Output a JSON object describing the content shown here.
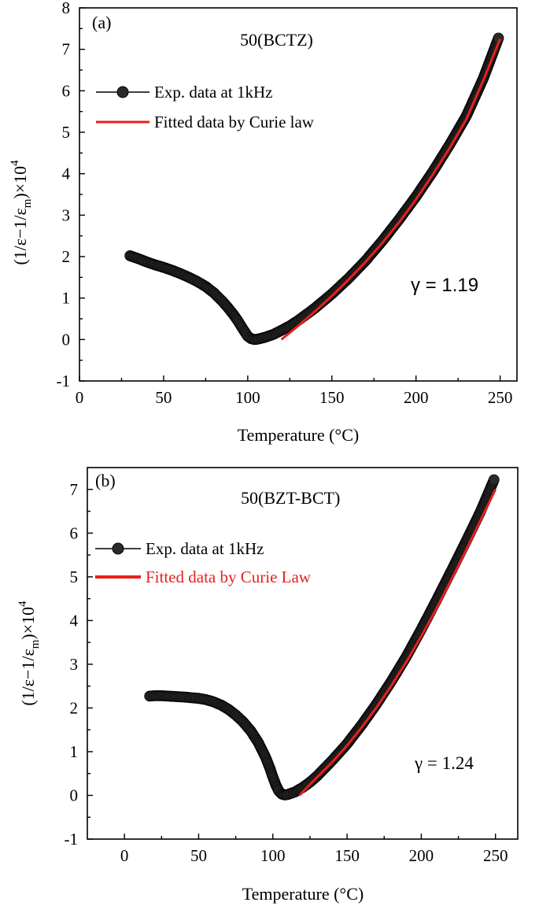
{
  "chart_data": [
    {
      "type": "scatter",
      "panel_label": "(a)",
      "title": "50(BCTZ)",
      "xlabel": "Temperature (°C)",
      "ylabel": {
        "main": "(1/ε−1/ε",
        "sub": "m",
        "close": ")×10",
        "sup": "4"
      },
      "xlim": [
        0,
        260
      ],
      "ylim": [
        -1,
        8
      ],
      "xticks": [
        0,
        50,
        100,
        150,
        200,
        250
      ],
      "yticks": [
        -1,
        0,
        1,
        2,
        3,
        4,
        5,
        6,
        7,
        8
      ],
      "grid": false,
      "legend_position": "top-left",
      "annotation": {
        "text": "γ = 1.19",
        "font": "sans"
      },
      "series": [
        {
          "name": "Exp. data at 1kHz",
          "kind": "marker",
          "color": "#2a2a2a",
          "x": [
            30,
            35,
            40,
            45,
            50,
            55,
            60,
            65,
            70,
            75,
            80,
            85,
            88,
            91,
            94,
            96,
            98,
            100,
            102,
            104,
            106,
            110,
            115,
            120,
            125,
            130,
            140,
            150,
            160,
            170,
            180,
            190,
            200,
            210,
            220,
            230,
            240,
            249
          ],
          "y": [
            2.02,
            1.95,
            1.87,
            1.8,
            1.74,
            1.67,
            1.59,
            1.5,
            1.4,
            1.28,
            1.12,
            0.92,
            0.78,
            0.63,
            0.46,
            0.33,
            0.2,
            0.08,
            0.02,
            0.0,
            0.01,
            0.05,
            0.12,
            0.22,
            0.33,
            0.46,
            0.76,
            1.1,
            1.48,
            1.9,
            2.38,
            2.9,
            3.45,
            4.05,
            4.7,
            5.4,
            6.3,
            7.27
          ]
        },
        {
          "name": "Fitted data by Curie law",
          "kind": "line",
          "color": "#e8201c",
          "x": [
            120,
            130,
            140,
            150,
            160,
            170,
            180,
            190,
            200,
            210,
            220,
            230,
            240,
            250
          ],
          "y": [
            0.0,
            0.33,
            0.68,
            1.05,
            1.45,
            1.87,
            2.33,
            2.83,
            3.38,
            3.98,
            4.62,
            5.32,
            6.25,
            7.25
          ]
        }
      ]
    },
    {
      "type": "scatter",
      "panel_label": "(b)",
      "title": "50(BZT-BCT)",
      "xlabel": "Temperature (°C)",
      "ylabel": {
        "main": "(1/ε−1/ε",
        "sub": "m",
        "close": ")×10",
        "sup": "4"
      },
      "xlim": [
        -25,
        265
      ],
      "ylim": [
        -1,
        7.5
      ],
      "xticks": [
        0,
        50,
        100,
        150,
        200,
        250
      ],
      "yticks": [
        -1,
        0,
        1,
        2,
        3,
        4,
        5,
        6,
        7
      ],
      "grid": false,
      "legend_position": "top-left",
      "annotation": {
        "text": "γ = 1.24",
        "font": "serif"
      },
      "series": [
        {
          "name": "Exp. data at 1kHz",
          "kind": "marker",
          "color": "#2a2a2a",
          "x": [
            17,
            20,
            25,
            30,
            40,
            50,
            55,
            60,
            65,
            70,
            75,
            80,
            85,
            90,
            95,
            98,
            100,
            102,
            104,
            106,
            108,
            110,
            115,
            120,
            125,
            130,
            140,
            150,
            160,
            170,
            180,
            190,
            200,
            210,
            220,
            230,
            240,
            249
          ],
          "y": [
            2.27,
            2.28,
            2.28,
            2.27,
            2.25,
            2.22,
            2.19,
            2.14,
            2.07,
            1.97,
            1.84,
            1.68,
            1.48,
            1.22,
            0.88,
            0.62,
            0.42,
            0.24,
            0.1,
            0.03,
            0.01,
            0.02,
            0.08,
            0.18,
            0.3,
            0.45,
            0.8,
            1.18,
            1.62,
            2.1,
            2.62,
            3.18,
            3.8,
            4.45,
            5.12,
            5.8,
            6.5,
            7.22
          ]
        },
        {
          "name": "Fitted data by Curie Law",
          "kind": "line",
          "color": "#e8201c",
          "x": [
            118,
            125,
            130,
            140,
            150,
            160,
            170,
            180,
            190,
            200,
            210,
            220,
            230,
            240,
            250
          ],
          "y": [
            0.0,
            0.25,
            0.42,
            0.76,
            1.14,
            1.56,
            2.02,
            2.52,
            3.06,
            3.64,
            4.26,
            4.92,
            5.6,
            6.3,
            7.0
          ]
        }
      ]
    }
  ]
}
